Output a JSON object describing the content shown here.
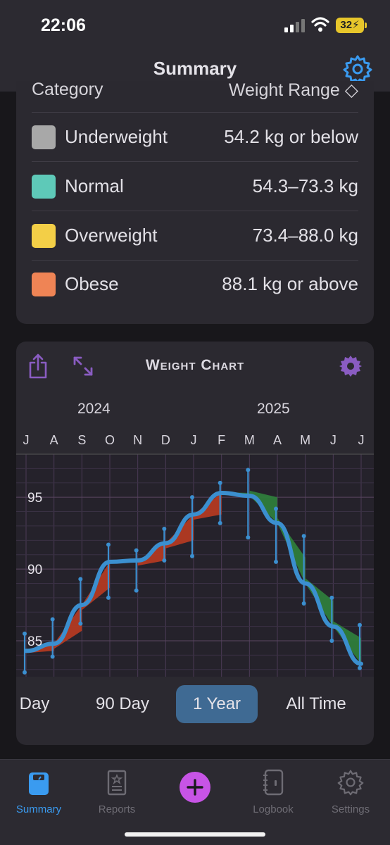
{
  "status_bar": {
    "time": "22:06",
    "battery": "32"
  },
  "nav": {
    "title": "Summary"
  },
  "bmi_table": {
    "header_category": "Category",
    "header_range": "Weight Range ◇",
    "rows": [
      {
        "category": "Underweight",
        "range": "54.2 kg or below",
        "color": "#a8a8a8"
      },
      {
        "category": "Normal",
        "range": "54.3–73.3 kg",
        "color": "#5ec9b8"
      },
      {
        "category": "Overweight",
        "range": "73.4–88.0 kg",
        "color": "#f3cf47"
      },
      {
        "category": "Obese",
        "range": "88.1 kg or above",
        "color": "#ef8455"
      }
    ]
  },
  "weight_chart": {
    "title": "Weight Chart",
    "years": [
      "2024",
      "2025"
    ],
    "months": [
      "J",
      "A",
      "S",
      "O",
      "N",
      "D",
      "J",
      "F",
      "M",
      "A",
      "M",
      "J",
      "J"
    ],
    "y_ticks": [
      "95",
      "90",
      "85"
    ],
    "range_buttons": [
      "Day",
      "90 Day",
      "1 Year",
      "All Time"
    ],
    "active_range": "1 Year"
  },
  "chart_data": {
    "type": "line",
    "x": [
      "Jul 2024",
      "Aug 2024",
      "Sep 2024",
      "Oct 2024",
      "Nov 2024",
      "Dec 2024",
      "Jan 2025",
      "Feb 2025",
      "Mar 2025",
      "Apr 2025",
      "May 2025",
      "Jun 2025",
      "Jul 2025"
    ],
    "series": [
      {
        "trend": [
          84.3,
          84.8,
          87.5,
          90.5,
          90.6,
          91.8,
          93.8,
          95.3,
          95.1,
          93.2,
          89.0,
          86.0,
          83.4
        ]
      }
    ],
    "measurement_ranges": [
      {
        "month": "Jul 2024",
        "low": 82.8,
        "high": 85.5
      },
      {
        "month": "Aug 2024",
        "low": 83.9,
        "high": 86.5
      },
      {
        "month": "Sep 2024",
        "low": 86.2,
        "high": 89.3
      },
      {
        "month": "Oct 2024",
        "low": 88.0,
        "high": 91.7
      },
      {
        "month": "Nov 2024",
        "low": 88.5,
        "high": 91.3
      },
      {
        "month": "Dec 2024",
        "low": 90.6,
        "high": 92.8
      },
      {
        "month": "Jan 2025",
        "low": 90.9,
        "high": 95.0
      },
      {
        "month": "Feb 2025",
        "low": 93.2,
        "high": 96.0
      },
      {
        "month": "Mar 2025",
        "low": 92.2,
        "high": 96.9
      },
      {
        "month": "Apr 2025",
        "low": 90.5,
        "high": 94.2
      },
      {
        "month": "May 2025",
        "low": 87.6,
        "high": 92.3
      },
      {
        "month": "Jun 2025",
        "low": 85.0,
        "high": 88.0
      },
      {
        "month": "Jul 2025",
        "low": 83.1,
        "high": 86.1
      }
    ],
    "ylim": [
      82.5,
      98.0
    ],
    "grid": true,
    "colors": {
      "trend": "#3b8fcf",
      "gain_fill": "#b23a22",
      "loss_fill": "#2e7d3b"
    }
  },
  "tab_bar": {
    "tabs": [
      {
        "label": "Summary",
        "icon": "scale-icon",
        "active": true
      },
      {
        "label": "Reports",
        "icon": "report-icon",
        "active": false
      },
      {
        "label": "",
        "icon": "plus-icon",
        "active": false
      },
      {
        "label": "Logbook",
        "icon": "logbook-icon",
        "active": false
      },
      {
        "label": "Settings",
        "icon": "gear-icon",
        "active": false
      }
    ]
  }
}
